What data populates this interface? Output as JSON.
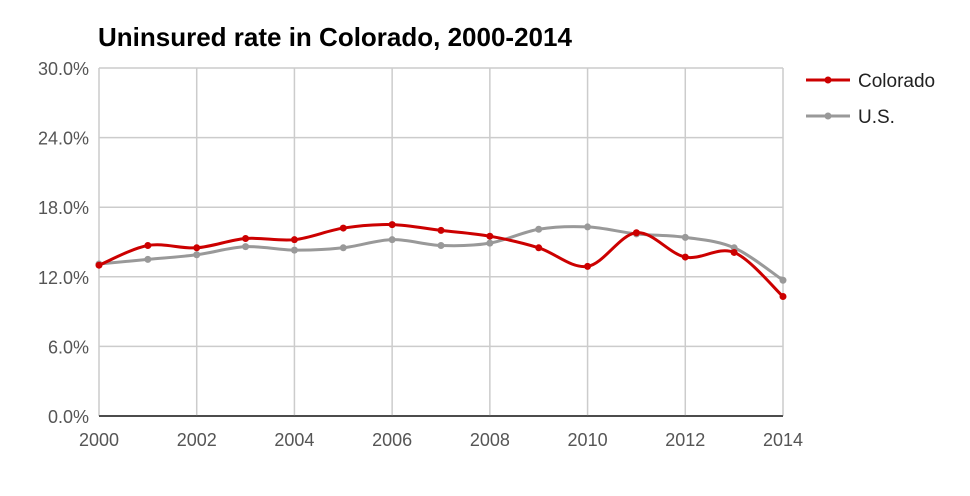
{
  "chart_data": {
    "type": "line",
    "title": "Uninsured rate in Colorado, 2000-2014",
    "xlabel": "",
    "ylabel": "",
    "x": [
      2000,
      2001,
      2002,
      2003,
      2004,
      2005,
      2006,
      2007,
      2008,
      2009,
      2010,
      2011,
      2012,
      2013,
      2014
    ],
    "xticks": [
      "2000",
      "2002",
      "2004",
      "2006",
      "2008",
      "2010",
      "2012",
      "2014"
    ],
    "yticks": [
      "0.0%",
      "6.0%",
      "12.0%",
      "18.0%",
      "24.0%",
      "30.0%"
    ],
    "ylim": [
      0,
      30
    ],
    "grid": true,
    "legend_position": "right",
    "series": [
      {
        "name": "Colorado",
        "color": "#cc0000",
        "values": [
          13.0,
          14.7,
          14.5,
          15.3,
          15.2,
          16.2,
          16.5,
          16.0,
          15.5,
          14.5,
          12.9,
          15.8,
          13.7,
          14.1,
          10.3
        ]
      },
      {
        "name": "U.S.",
        "color": "#999999",
        "values": [
          13.1,
          13.5,
          13.9,
          14.6,
          14.3,
          14.5,
          15.2,
          14.7,
          14.9,
          16.1,
          16.3,
          15.7,
          15.4,
          14.5,
          11.7
        ]
      }
    ]
  }
}
